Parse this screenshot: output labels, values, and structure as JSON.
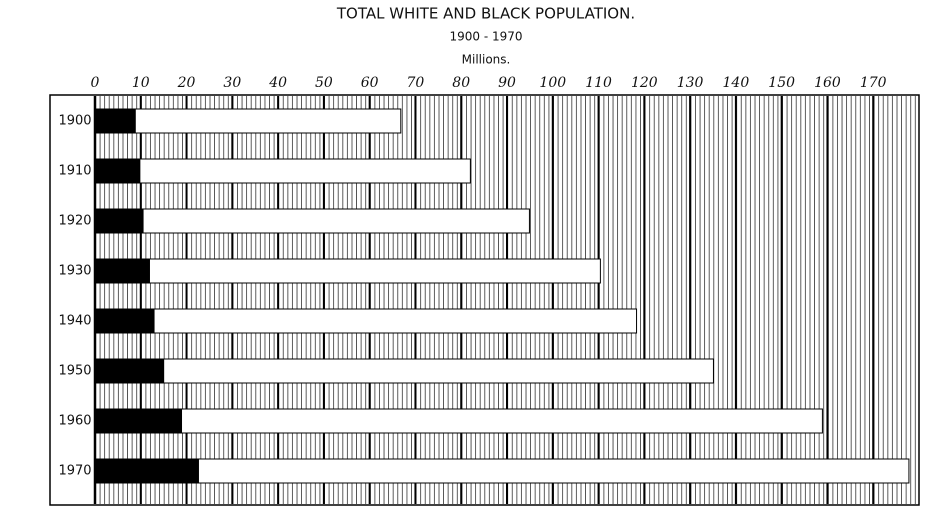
{
  "chart_data": {
    "type": "bar",
    "orientation": "horizontal",
    "overlap": true,
    "title": "TOTAL WHITE AND BLACK POPULATION.",
    "subtitle": "1900 - 1970",
    "x_label": "Millions.",
    "categories": [
      "1900",
      "1910",
      "1920",
      "1930",
      "1940",
      "1950",
      "1960",
      "1970"
    ],
    "series": [
      {
        "color": "#ffffff",
        "values": [
          66.8,
          82.0,
          94.9,
          110.4,
          118.3,
          135.1,
          158.9,
          177.8
        ]
      },
      {
        "color": "#000000",
        "values": [
          8.8,
          9.8,
          10.5,
          11.9,
          12.9,
          15.0,
          18.9,
          22.6
        ]
      }
    ],
    "xlim": [
      0,
      180
    ],
    "xticks": [
      0,
      10,
      20,
      30,
      40,
      50,
      60,
      70,
      80,
      90,
      100,
      110,
      120,
      130,
      140,
      150,
      160,
      170
    ],
    "grid": true
  }
}
